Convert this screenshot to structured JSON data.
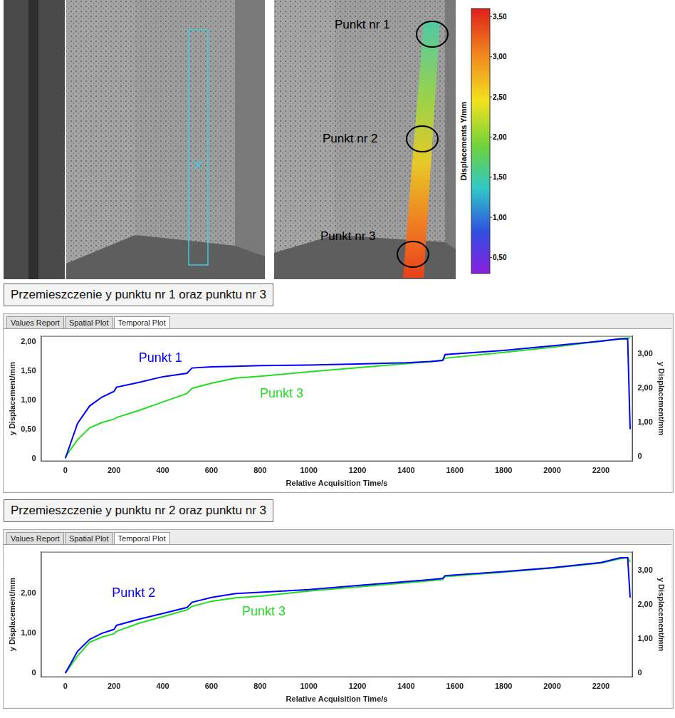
{
  "figure": {
    "point_labels": [
      "Punkt nr 1",
      "Punkt nr 2",
      "Punkt nr 3"
    ],
    "colorbar": {
      "label": "Displacements Y/mm",
      "range": [
        0.3,
        3.6
      ],
      "ticks": [
        {
          "value": 0.5,
          "label": "0,50"
        },
        {
          "value": 1.0,
          "label": "1,00"
        },
        {
          "value": 1.5,
          "label": "1,50"
        },
        {
          "value": 2.0,
          "label": "2,00"
        },
        {
          "value": 2.5,
          "label": "2,50"
        },
        {
          "value": 3.0,
          "label": "3,00"
        },
        {
          "value": 3.5,
          "label": "3,50"
        }
      ]
    }
  },
  "chart_data": [
    {
      "type": "line",
      "heading": "Przemieszczenie y punktu nr 1 oraz punktu nr 3",
      "tabs": [
        "Values Report",
        "Spatial Plot",
        "Temporal Plot"
      ],
      "x_label": "Relative Acquisition Time/s",
      "y_label": "y Displacement/mm",
      "y2_label": "y Displacement/mm",
      "x": [
        0,
        50,
        100,
        150,
        200,
        210,
        300,
        400,
        500,
        520,
        600,
        700,
        800,
        1000,
        1200,
        1400,
        1500,
        1550,
        1560,
        1800,
        2000,
        2200,
        2280,
        2310,
        2320
      ],
      "series": [
        {
          "name": "Punkt 1",
          "color": "#0000ff",
          "values": [
            0,
            0.6,
            0.9,
            1.05,
            1.15,
            1.22,
            1.3,
            1.4,
            1.46,
            1.55,
            1.57,
            1.58,
            1.59,
            1.6,
            1.62,
            1.64,
            1.66,
            1.68,
            1.78,
            1.85,
            1.93,
            2.01,
            2.05,
            2.05,
            0.5
          ]
        },
        {
          "name": "Punkt 3",
          "color": "#22dd22",
          "axis": "y2",
          "values": [
            0,
            0.5,
            0.85,
            1.0,
            1.1,
            1.15,
            1.35,
            1.6,
            1.85,
            2.0,
            2.15,
            2.3,
            2.35,
            2.48,
            2.6,
            2.72,
            2.78,
            2.82,
            2.88,
            3.05,
            3.2,
            3.38,
            3.45,
            3.47,
            3.47
          ]
        }
      ],
      "xlim": [
        -100,
        2330
      ],
      "xticks": [
        0,
        200,
        400,
        600,
        800,
        1000,
        1200,
        1400,
        1600,
        1800,
        2000,
        2200
      ],
      "ylim": [
        -0.05,
        2.1
      ],
      "yticks": [
        0,
        {
          "value": 0.5,
          "label": "0,50"
        },
        {
          "value": 1.0,
          "label": "1,00"
        },
        {
          "value": 1.5,
          "label": "1,50"
        },
        {
          "value": 2.0,
          "label": "2,00"
        }
      ],
      "y2lim": [
        -0.13,
        3.53
      ],
      "y2ticks": [
        0,
        {
          "value": 1.0,
          "label": "1,00"
        },
        {
          "value": 2.0,
          "label": "2,00"
        },
        {
          "value": 3.0,
          "label": "3,00"
        }
      ],
      "grid": false
    },
    {
      "type": "line",
      "heading": "Przemieszczenie y punktu nr 2 oraz punktu nr 3",
      "tabs": [
        "Values Report",
        "Spatial Plot",
        "Temporal Plot"
      ],
      "x_label": "Relative Acquisition Time/s",
      "y_label": "y Displacement/mm",
      "y2_label": "y Displacement/mm",
      "x": [
        0,
        50,
        100,
        150,
        200,
        210,
        300,
        400,
        500,
        520,
        600,
        700,
        800,
        1000,
        1200,
        1400,
        1500,
        1550,
        1560,
        1800,
        2000,
        2200,
        2280,
        2310,
        2320
      ],
      "series": [
        {
          "name": "Punkt 2",
          "color": "#0000ff",
          "values": [
            0,
            0.55,
            0.85,
            1.0,
            1.1,
            1.2,
            1.35,
            1.5,
            1.65,
            1.78,
            1.9,
            2.0,
            2.03,
            2.1,
            2.2,
            2.3,
            2.35,
            2.38,
            2.45,
            2.55,
            2.65,
            2.78,
            2.9,
            2.9,
            1.9
          ]
        },
        {
          "name": "Punkt 3",
          "color": "#22dd22",
          "axis": "y2",
          "values": [
            0,
            0.5,
            0.9,
            1.05,
            1.15,
            1.22,
            1.45,
            1.65,
            1.85,
            1.95,
            2.1,
            2.2,
            2.25,
            2.4,
            2.52,
            2.64,
            2.7,
            2.74,
            2.82,
            2.95,
            3.07,
            3.22,
            3.35,
            3.38,
            3.25
          ]
        }
      ],
      "xlim": [
        -100,
        2330
      ],
      "xticks": [
        0,
        200,
        400,
        600,
        800,
        1000,
        1200,
        1400,
        1600,
        1800,
        2000,
        2200
      ],
      "ylim": [
        -0.1,
        3.05
      ],
      "yticks": [
        0,
        {
          "value": 1.0,
          "label": "1,00"
        },
        {
          "value": 2.0,
          "label": "2,00"
        }
      ],
      "y2lim": [
        -0.12,
        3.55
      ],
      "y2ticks": [
        0,
        {
          "value": 1.0,
          "label": "1,00"
        },
        {
          "value": 2.0,
          "label": "2,00"
        },
        {
          "value": 3.0,
          "label": "3,00"
        }
      ],
      "grid": false
    }
  ]
}
